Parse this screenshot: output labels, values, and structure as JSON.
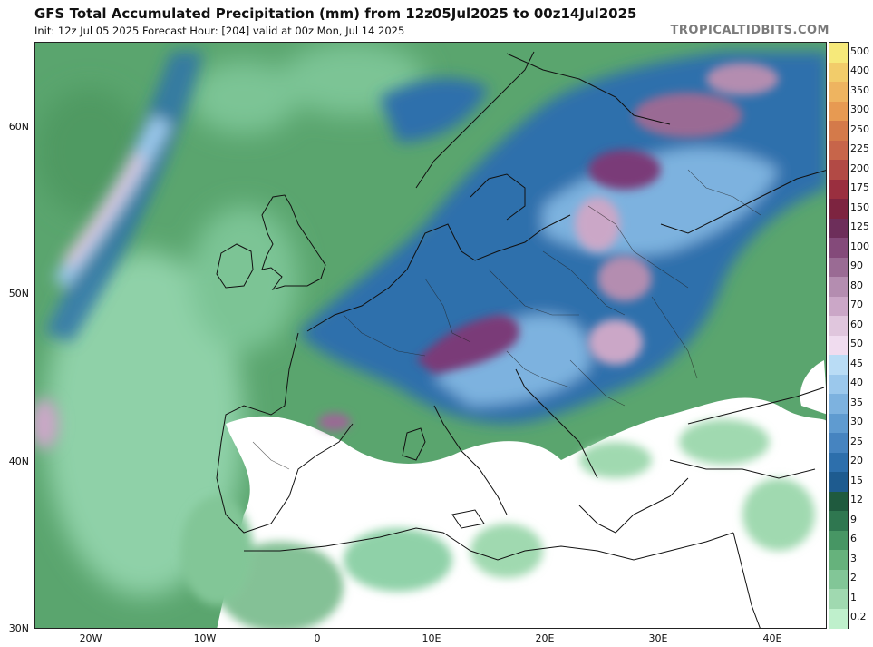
{
  "header": {
    "title": "GFS Total Accumulated Precipitation (mm) from 12z05Jul2025 to 00z14Jul2025",
    "subtitle": "Init: 12z Jul 05 2025   Forecast Hour: [204]   valid at 00z Mon, Jul 14 2025",
    "brand": "TROPICALTIDBITS.COM"
  },
  "map": {
    "lat_labels": [
      "60N",
      "50N",
      "40N",
      "30N"
    ],
    "lon_labels": [
      "20W",
      "10W",
      "0",
      "10E",
      "20E",
      "30E",
      "40E"
    ],
    "colors": {
      "ocean_wet": "#5aa56e",
      "ocean_light": "#8fd1a8",
      "dry": "#ffffff",
      "heavy": "#2f79b3",
      "extreme": "#7a3a78"
    }
  },
  "legend": {
    "labels": [
      "500",
      "400",
      "350",
      "300",
      "250",
      "225",
      "200",
      "175",
      "150",
      "125",
      "100",
      "90",
      "80",
      "70",
      "60",
      "50",
      "45",
      "40",
      "35",
      "30",
      "25",
      "20",
      "15",
      "12",
      "9",
      "6",
      "3",
      "2",
      "1",
      "0.2"
    ],
    "colors": [
      "#f6e97a",
      "#f2cc6a",
      "#eeb460",
      "#e79a52",
      "#d47a4a",
      "#c7654a",
      "#b24a45",
      "#9a2f3f",
      "#7d2440",
      "#6d2e5a",
      "#844a7a",
      "#9a6b94",
      "#b48db0",
      "#cba7c7",
      "#e0c6dd",
      "#f0dcef",
      "#b9dcf5",
      "#9bc8ec",
      "#7db2df",
      "#5f9bd0",
      "#4684c0",
      "#2d6fac",
      "#1e5b8f",
      "#1f5a3e",
      "#2f7750",
      "#479664",
      "#66b27c",
      "#82c697",
      "#a0d9b0",
      "#bff0cc"
    ]
  }
}
